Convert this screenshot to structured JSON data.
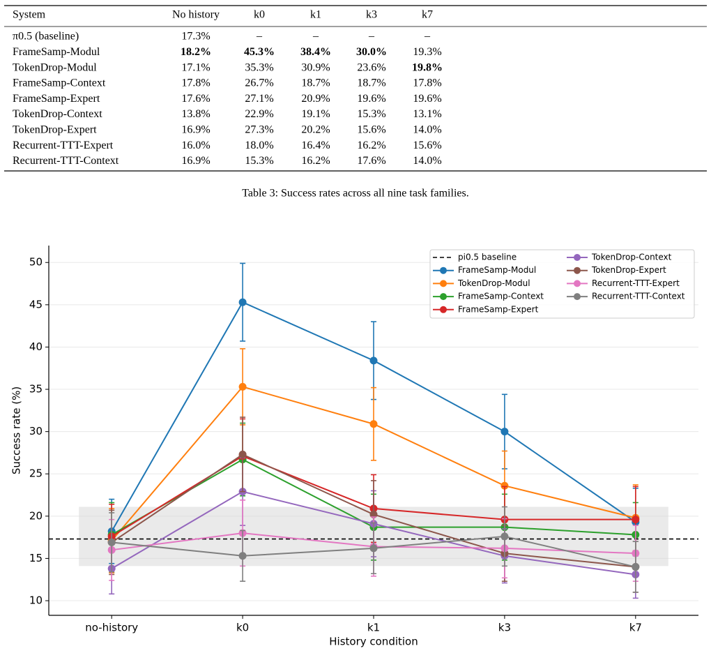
{
  "table": {
    "header": [
      "System",
      "No history",
      "k0",
      "k1",
      "k3",
      "k7"
    ],
    "rows": [
      [
        "π0.5 (baseline)",
        "17.3%",
        "–",
        "–",
        "–",
        "–"
      ],
      [
        "FrameSamp-Modul",
        "18.2%",
        "45.3%",
        "38.4%",
        "30.0%",
        "19.3%"
      ],
      [
        "TokenDrop-Modul",
        "17.1%",
        "35.3%",
        "30.9%",
        "23.6%",
        "19.8%"
      ],
      [
        "FrameSamp-Context",
        "17.8%",
        "26.7%",
        "18.7%",
        "18.7%",
        "17.8%"
      ],
      [
        "FrameSamp-Expert",
        "17.6%",
        "27.1%",
        "20.9%",
        "19.6%",
        "19.6%"
      ],
      [
        "TokenDrop-Context",
        "13.8%",
        "22.9%",
        "19.1%",
        "15.3%",
        "13.1%"
      ],
      [
        "TokenDrop-Expert",
        "16.9%",
        "27.3%",
        "20.2%",
        "15.6%",
        "14.0%"
      ],
      [
        "Recurrent-TTT-Expert",
        "16.0%",
        "18.0%",
        "16.4%",
        "16.2%",
        "15.6%"
      ],
      [
        "Recurrent-TTT-Context",
        "16.9%",
        "15.3%",
        "16.2%",
        "17.6%",
        "14.0%"
      ]
    ],
    "bold_cells": [
      [
        1,
        1
      ],
      [
        1,
        2
      ],
      [
        1,
        3
      ],
      [
        1,
        4
      ],
      [
        2,
        5
      ]
    ],
    "caption": "Table 3: Success rates across all nine task families."
  },
  "chart_data": {
    "type": "line",
    "xlabel": "History condition",
    "ylabel": "Success rate (%)",
    "categories": [
      "no-history",
      "k0",
      "k1",
      "k3",
      "k7"
    ],
    "ylim": [
      8.27,
      52
    ],
    "yticks": [
      10,
      15,
      20,
      25,
      30,
      35,
      40,
      45,
      50
    ],
    "grid": true,
    "legend": "upper right",
    "baseline": 17.3,
    "baseline_name": "pi0.5 baseline",
    "baseline_ci": [
      14.1,
      21.1
    ],
    "series": [
      {
        "name": "FrameSamp-Modul",
        "color": "#1f77b4",
        "values": [
          18.2,
          45.3,
          38.4,
          30.0,
          19.3
        ],
        "errors": [
          3.8,
          4.6,
          4.6,
          4.4,
          4.0
        ]
      },
      {
        "name": "TokenDrop-Modul",
        "color": "#ff7f0e",
        "values": [
          17.1,
          35.3,
          30.9,
          23.6,
          19.8
        ],
        "errors": [
          3.8,
          4.5,
          4.3,
          4.1,
          3.9
        ]
      },
      {
        "name": "FrameSamp-Context",
        "color": "#2ca02c",
        "values": [
          17.8,
          26.7,
          18.7,
          18.7,
          17.8
        ],
        "errors": [
          3.8,
          4.3,
          3.9,
          3.9,
          3.8
        ]
      },
      {
        "name": "FrameSamp-Expert",
        "color": "#d62728",
        "values": [
          17.6,
          27.1,
          20.9,
          19.6,
          19.6
        ],
        "errors": [
          3.8,
          4.4,
          4.0,
          3.9,
          3.9
        ]
      },
      {
        "name": "TokenDrop-Context",
        "color": "#9467bd",
        "values": [
          13.8,
          22.9,
          19.1,
          15.3,
          13.1
        ],
        "errors": [
          3.0,
          4.0,
          3.9,
          3.2,
          2.8
        ]
      },
      {
        "name": "TokenDrop-Expert",
        "color": "#8c564b",
        "values": [
          16.9,
          27.3,
          20.2,
          15.6,
          14.0
        ],
        "errors": [
          3.8,
          4.4,
          4.0,
          3.3,
          3.0
        ]
      },
      {
        "name": "Recurrent-TTT-Expert",
        "color": "#e377c2",
        "values": [
          16.0,
          18.0,
          16.4,
          16.2,
          15.6
        ],
        "errors": [
          3.6,
          3.9,
          3.5,
          3.5,
          3.3
        ]
      },
      {
        "name": "Recurrent-TTT-Context",
        "color": "#7f7f7f",
        "values": [
          16.9,
          15.3,
          16.2,
          17.6,
          14.0
        ],
        "errors": [
          3.5,
          3.0,
          3.0,
          3.5,
          3.0
        ]
      }
    ]
  }
}
